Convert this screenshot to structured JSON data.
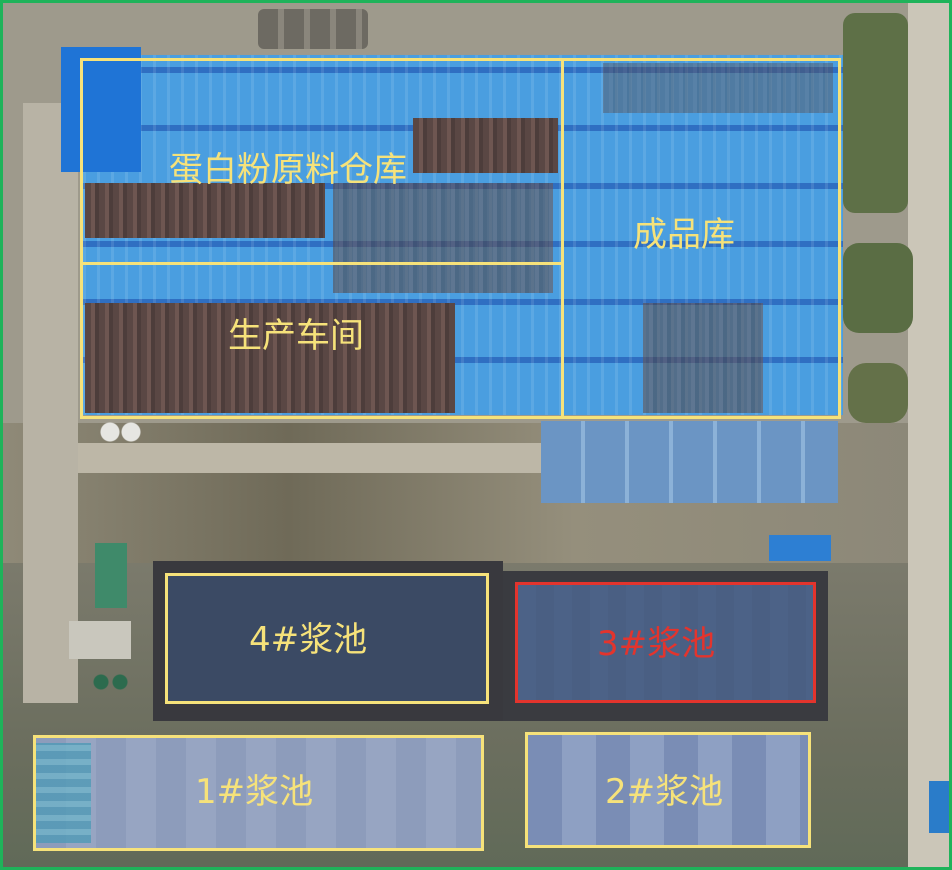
{
  "map": {
    "areas": {
      "warehouse": "蛋白粉原料仓库",
      "workshop": "生产车间",
      "finished_goods": "成品库",
      "pond4": "4#浆池",
      "pond3": "3#浆池",
      "pond1": "1#浆池",
      "pond2": "2#浆池"
    },
    "colors": {
      "outline": "#f6e27a",
      "highlight": "#e3342d",
      "frame": "#1fb35a"
    }
  }
}
